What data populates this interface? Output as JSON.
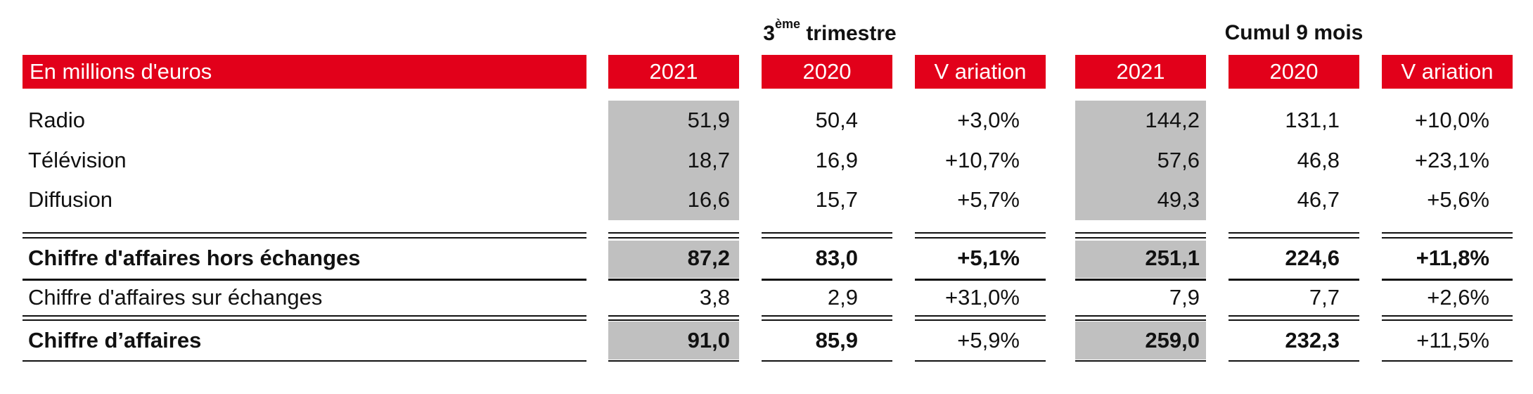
{
  "groups": {
    "quarter": {
      "prefix": "3",
      "sup": "ème",
      "suffix": " trimestre"
    },
    "cumulative": {
      "title": "Cumul 9 mois"
    }
  },
  "header": {
    "label": "En millions d'euros",
    "columns": [
      "2021",
      "2020",
      "V ariation",
      "2021",
      "2020",
      "V ariation"
    ]
  },
  "rows": [
    {
      "label": "Radio",
      "values": [
        "51,9",
        "50,4",
        "+3,0%",
        "144,2",
        "131,1",
        "+10,0%"
      ]
    },
    {
      "label": "Télévision",
      "values": [
        "18,7",
        "16,9",
        "+10,7%",
        "57,6",
        "46,8",
        "+23,1%"
      ]
    },
    {
      "label": "Diffusion",
      "values": [
        "16,6",
        "15,7",
        "+5,7%",
        "49,3",
        "46,7",
        "+5,6%"
      ]
    },
    {
      "label": "Chiffre d'affaires hors échanges",
      "values": [
        "87,2",
        "83,0",
        "+5,1%",
        "251,1",
        "224,6",
        "+11,8%"
      ]
    },
    {
      "label": "Chiffre d'affaires sur échanges",
      "values": [
        "3,8",
        "2,9",
        "+31,0%",
        "7,9",
        "7,7",
        "+2,6%"
      ]
    },
    {
      "label": "Chiffre d’affaires",
      "values": [
        "91,0",
        "85,9",
        "+5,9%",
        "259,0",
        "232,3",
        "+11,5%"
      ]
    }
  ],
  "colors": {
    "header_bg": "#e2001a",
    "highlight_bg": "#c0c0c0"
  }
}
